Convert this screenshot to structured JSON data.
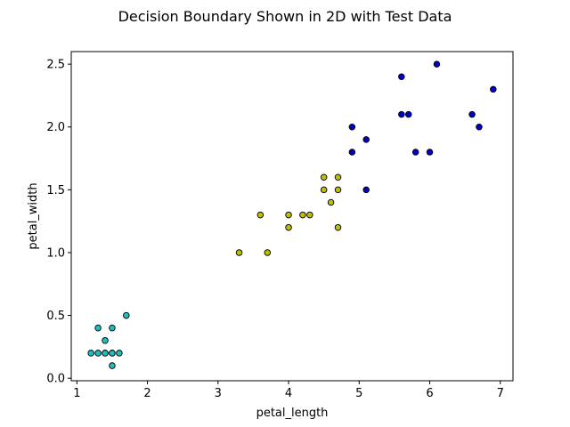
{
  "chart_data": {
    "type": "scatter",
    "title": "Decision Boundary Shown in 2D with Test Data",
    "xlabel": "petal_length",
    "ylabel": "petal_width",
    "xlim": [
      0.92,
      7.18
    ],
    "ylim": [
      -0.02,
      2.6
    ],
    "xticks": [
      1,
      2,
      3,
      4,
      5,
      6,
      7
    ],
    "yticks": [
      0.0,
      0.5,
      1.0,
      1.5,
      2.0,
      2.5
    ],
    "grid": false,
    "series": [
      {
        "color": "#1fbfbf",
        "points": [
          [
            1.2,
            0.2
          ],
          [
            1.3,
            0.2
          ],
          [
            1.4,
            0.2
          ],
          [
            1.5,
            0.2
          ],
          [
            1.6,
            0.2
          ],
          [
            1.5,
            0.2
          ],
          [
            1.3,
            0.4
          ],
          [
            1.5,
            0.4
          ],
          [
            1.4,
            0.3
          ],
          [
            1.5,
            0.1
          ],
          [
            1.7,
            0.5
          ],
          [
            1.4,
            0.2
          ]
        ]
      },
      {
        "color": "#bfbf00",
        "points": [
          [
            3.3,
            1.0
          ],
          [
            3.7,
            1.0
          ],
          [
            3.6,
            1.3
          ],
          [
            4.0,
            1.3
          ],
          [
            4.0,
            1.2
          ],
          [
            4.2,
            1.3
          ],
          [
            4.3,
            1.3
          ],
          [
            4.5,
            1.6
          ],
          [
            4.5,
            1.5
          ],
          [
            4.6,
            1.4
          ],
          [
            4.7,
            1.6
          ],
          [
            4.7,
            1.5
          ],
          [
            4.7,
            1.2
          ]
        ]
      },
      {
        "color": "#0000bf",
        "points": [
          [
            4.9,
            2.0
          ],
          [
            4.9,
            1.8
          ],
          [
            5.1,
            1.9
          ],
          [
            5.1,
            1.5
          ],
          [
            5.6,
            2.4
          ],
          [
            5.6,
            2.1
          ],
          [
            5.7,
            2.1
          ],
          [
            5.8,
            1.8
          ],
          [
            6.0,
            1.8
          ],
          [
            6.1,
            2.5
          ],
          [
            6.6,
            2.1
          ],
          [
            6.7,
            2.0
          ],
          [
            6.9,
            2.3
          ]
        ]
      }
    ]
  }
}
